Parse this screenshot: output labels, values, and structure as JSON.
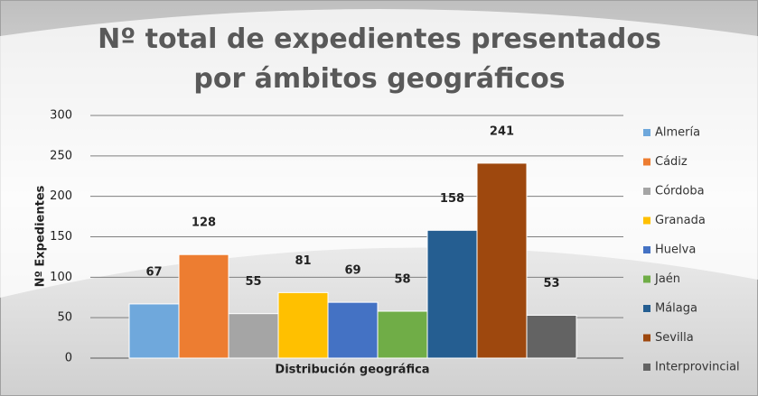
{
  "chart_data": {
    "type": "bar",
    "title": "Nº total de expedientes presentados por ámbitos geográficos",
    "y_label": "Nº Expedientes",
    "x_label": "Distribución geográfica",
    "categories": [
      "Almería",
      "Cádiz",
      "Córdoba",
      "Granada",
      "Huelva",
      "Jaén",
      "Málaga",
      "Sevilla",
      "Interprovincial"
    ],
    "values": [
      67,
      128,
      55,
      81,
      69,
      58,
      158,
      241,
      53
    ],
    "colors": [
      "#6fa8dc",
      "#ed7d31",
      "#a5a5a5",
      "#ffc000",
      "#4472c4",
      "#70ad47",
      "#255e91",
      "#9e480e",
      "#636363"
    ],
    "ylim": [
      0,
      300
    ],
    "yticks": [
      0,
      50,
      100,
      150,
      200,
      250,
      300
    ],
    "grid": true,
    "legend": "right"
  }
}
